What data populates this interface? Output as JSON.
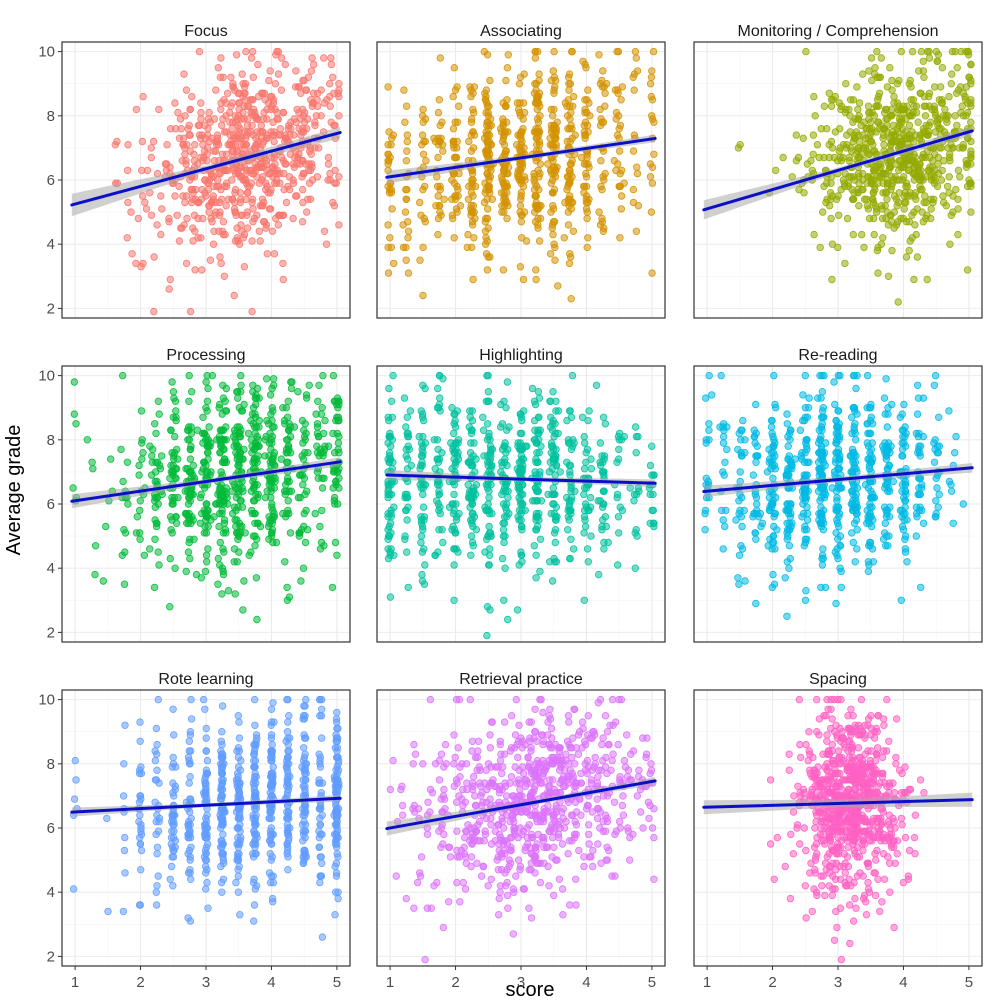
{
  "chart_data": {
    "type": "scatter",
    "layout": "facet-grid 3x3",
    "xlabel": "score",
    "ylabel": "Average grade",
    "xlim": [
      0.8,
      5.2
    ],
    "ylim": [
      1.7,
      10.3
    ],
    "x_ticks": [
      1,
      2,
      3,
      4,
      5
    ],
    "x_tick_labels": [
      "1",
      "2",
      "3",
      "4",
      "5"
    ],
    "y_ticks": [
      2,
      4,
      6,
      8,
      10
    ],
    "y_tick_labels": [
      "2",
      "4",
      "6",
      "8",
      "10"
    ],
    "grid": true,
    "panels": [
      {
        "title": "Focus",
        "color": "#F8766D",
        "fit": {
          "x": [
            1,
            5
          ],
          "y": [
            5.25,
            7.45
          ]
        },
        "se_half_width": [
          0.35,
          0.18
        ],
        "x_min": 1,
        "x_max": 5,
        "x_center": 3.6,
        "x_spread": 0.75,
        "y_center": 6.9,
        "y_spread": 1.5,
        "n": 700,
        "jitter": 0.12,
        "discrete": false
      },
      {
        "title": "Associating",
        "color": "#D39200",
        "fit": {
          "x": [
            1,
            5
          ],
          "y": [
            6.1,
            7.28
          ]
        },
        "se_half_width": [
          0.2,
          0.12
        ],
        "x_min": 1,
        "x_max": 5,
        "x_center": 3.0,
        "x_spread": 1.0,
        "y_center": 6.7,
        "y_spread": 1.6,
        "n": 750,
        "jitter": 0.03,
        "discrete": true
      },
      {
        "title": "Monitoring / Comprehension",
        "color": "#93AA00",
        "fit": {
          "x": [
            1,
            5
          ],
          "y": [
            5.1,
            7.5
          ]
        },
        "se_half_width": [
          0.3,
          0.15
        ],
        "x_min": 1,
        "x_max": 5,
        "x_center": 3.9,
        "x_spread": 0.7,
        "y_center": 7.0,
        "y_spread": 1.5,
        "n": 700,
        "jitter": 0.06,
        "discrete": false
      },
      {
        "title": "Processing",
        "color": "#00BA38",
        "fit": {
          "x": [
            1,
            5
          ],
          "y": [
            6.1,
            7.3
          ]
        },
        "se_half_width": [
          0.22,
          0.14
        ],
        "x_min": 1,
        "x_max": 5,
        "x_center": 3.5,
        "x_spread": 0.9,
        "y_center": 6.8,
        "y_spread": 1.55,
        "n": 750,
        "jitter": 0.04,
        "discrete": true
      },
      {
        "title": "Highlighting",
        "color": "#00C19F",
        "fit": {
          "x": [
            1,
            5
          ],
          "y": [
            6.9,
            6.65
          ]
        },
        "se_half_width": [
          0.16,
          0.12
        ],
        "x_min": 1,
        "x_max": 5,
        "x_center": 2.7,
        "x_spread": 1.1,
        "y_center": 6.8,
        "y_spread": 1.55,
        "n": 750,
        "jitter": 0.03,
        "discrete": true
      },
      {
        "title": "Re-reading",
        "color": "#00B9E3",
        "fit": {
          "x": [
            1,
            5
          ],
          "y": [
            6.4,
            7.12
          ]
        },
        "se_half_width": [
          0.18,
          0.15
        ],
        "x_min": 1,
        "x_max": 5,
        "x_center": 2.9,
        "x_spread": 0.9,
        "y_center": 6.8,
        "y_spread": 1.55,
        "n": 750,
        "jitter": 0.03,
        "discrete": true
      },
      {
        "title": "Rote learning",
        "color": "#619CFF",
        "fit": {
          "x": [
            1,
            5
          ],
          "y": [
            6.5,
            6.92
          ]
        },
        "se_half_width": [
          0.14,
          0.1
        ],
        "x_min": 1,
        "x_max": 5,
        "x_center": 3.7,
        "x_spread": 1.0,
        "y_center": 6.8,
        "y_spread": 1.55,
        "n": 750,
        "jitter": 0.015,
        "discrete": true
      },
      {
        "title": "Retrieval practice",
        "color": "#DB72FB",
        "fit": {
          "x": [
            1,
            5
          ],
          "y": [
            6.0,
            7.45
          ]
        },
        "se_half_width": [
          0.22,
          0.12
        ],
        "x_min": 1,
        "x_max": 5,
        "x_center": 3.2,
        "x_spread": 0.85,
        "y_center": 6.8,
        "y_spread": 1.55,
        "n": 750,
        "jitter": 0.1,
        "discrete": false
      },
      {
        "title": "Spacing",
        "color": "#FF61C3",
        "fit": {
          "x": [
            1,
            5
          ],
          "y": [
            6.65,
            6.88
          ]
        },
        "se_half_width": [
          0.22,
          0.22
        ],
        "x_min": 2,
        "x_max": 4.7,
        "x_center": 3.2,
        "x_spread": 0.38,
        "y_center": 6.8,
        "y_spread": 1.55,
        "n": 750,
        "jitter": 0.12,
        "discrete": false
      }
    ]
  }
}
